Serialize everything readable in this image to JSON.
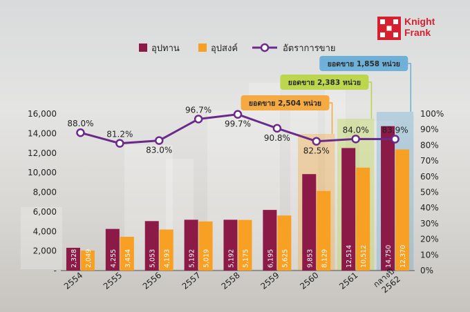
{
  "logo": {
    "line1": "Knight",
    "line2": "Frank"
  },
  "colors": {
    "supply": "#8c1a47",
    "demand": "#f8a024",
    "rate": "#6a2a8a"
  },
  "chart_data": {
    "type": "bar",
    "categories": [
      "2554",
      "2555",
      "2556",
      "2557",
      "2558",
      "2559",
      "2560",
      "2561",
      "กลางปี 2562"
    ],
    "series": [
      {
        "name": "อุปทาน",
        "type": "bar",
        "axis": "left",
        "values": [
          2328,
          4255,
          5053,
          5192,
          5192,
          6195,
          9853,
          12514,
          14750
        ],
        "labels": [
          "2,328",
          "4,255",
          "5,053",
          "5,192",
          "5,192",
          "6,195",
          "9,853",
          "12,514",
          "14,750"
        ]
      },
      {
        "name": "อุปสงค์",
        "type": "bar",
        "axis": "left",
        "values": [
          2049,
          3454,
          4193,
          5019,
          5175,
          5625,
          8129,
          10512,
          12370
        ],
        "labels": [
          "2,049",
          "3,454",
          "4,193",
          "5,019",
          "5,175",
          "5,625",
          "8,129",
          "10,512",
          "12,370"
        ]
      },
      {
        "name": "อัตราการขาย",
        "type": "line",
        "axis": "right",
        "values": [
          88.0,
          81.2,
          83.0,
          96.7,
          99.7,
          90.8,
          82.5,
          84.0,
          83.9
        ],
        "labels": [
          "88.0%",
          "81.2%",
          "83.0%",
          "96.7%",
          "99.7%",
          "90.8%",
          "82.5%",
          "84.0%",
          "83.9%"
        ]
      }
    ],
    "y_left": {
      "min": 0,
      "max": 16000,
      "ticks": [
        "-",
        "2,000",
        "4,000",
        "6,000",
        "8,000",
        "10,000",
        "12,000",
        "14,000",
        "16,000"
      ]
    },
    "y_right": {
      "min": 0,
      "max": 100,
      "ticks": [
        "0%",
        "10%",
        "20%",
        "30%",
        "40%",
        "50%",
        "60%",
        "70%",
        "80%",
        "90%",
        "100%"
      ]
    },
    "legend_position": "top",
    "annotations": [
      {
        "category": "2560",
        "text": "ยอดขาย 2,504 หน่วย"
      },
      {
        "category": "2561",
        "text": "ยอดขาย 2,383 หน่วย"
      },
      {
        "category": "กลางปี 2562",
        "text": "ยอดขาย 1,858 หน่วย"
      }
    ]
  }
}
